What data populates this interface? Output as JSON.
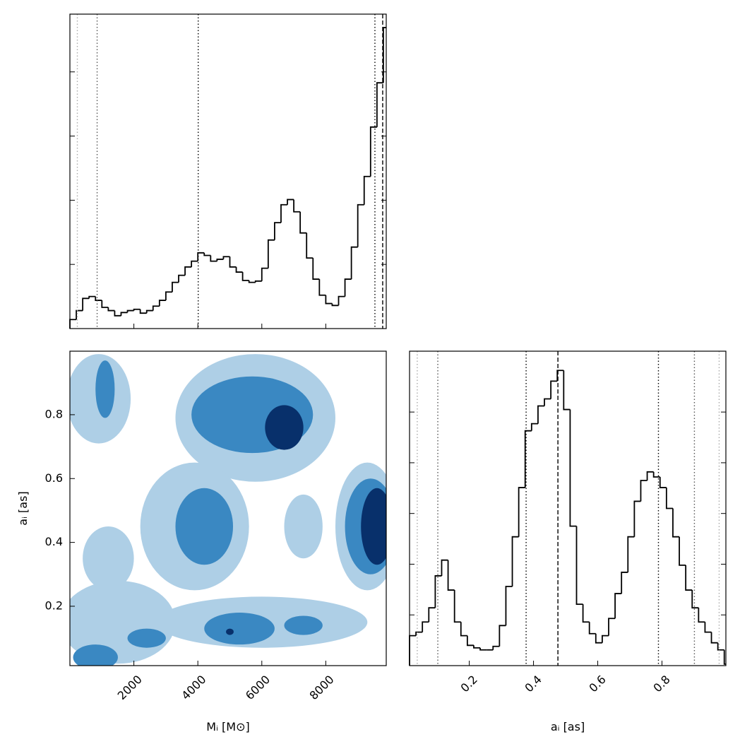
{
  "chart_data": [
    {
      "type": "histogram",
      "bins": [
        0,
        200,
        400,
        600,
        800,
        1000,
        1200,
        1400,
        1600,
        1800,
        2000,
        2200,
        2400,
        2600,
        2800,
        3000,
        3200,
        3400,
        3600,
        3800,
        4000,
        4200,
        4400,
        4600,
        4800,
        5000,
        5200,
        5400,
        5600,
        5800,
        6000,
        6200,
        6400,
        6600,
        6800,
        7000,
        7200,
        7400,
        7600,
        7800,
        8000,
        8200,
        8400,
        8600,
        8800,
        9000,
        9200,
        9400,
        9600,
        9800,
        9890
      ],
      "values": [
        0.14,
        0.28,
        0.47,
        0.5,
        0.44,
        0.33,
        0.28,
        0.2,
        0.25,
        0.28,
        0.3,
        0.24,
        0.28,
        0.35,
        0.44,
        0.57,
        0.72,
        0.83,
        0.96,
        1.05,
        1.18,
        1.14,
        1.05,
        1.08,
        1.12,
        0.96,
        0.88,
        0.75,
        0.72,
        0.74,
        0.94,
        1.38,
        1.65,
        1.93,
        2.01,
        1.82,
        1.49,
        1.1,
        0.77,
        0.52,
        0.39,
        0.36,
        0.5,
        0.77,
        1.27,
        1.93,
        2.37,
        3.14,
        3.83,
        4.69
      ],
      "color": "#000000",
      "xlim": [
        0,
        9890
      ],
      "xticks": [
        2000,
        4000,
        6000,
        8000
      ],
      "xtick_labels": false,
      "ylim": [
        0,
        4.9
      ],
      "yticks": [
        1,
        2,
        3,
        4
      ],
      "quantiles": [
        {
          "value": 232,
          "color": "#aaaaaa",
          "dash": "dotted"
        },
        {
          "value": 851,
          "color": "#555555",
          "dash": "dotted"
        },
        {
          "value": 4011,
          "color": "#000000",
          "dash": "dotted"
        },
        {
          "value": 9536,
          "color": "#000000",
          "dash": "dotted"
        },
        {
          "value": 9779,
          "color": "#000000",
          "dash": "dashed"
        }
      ]
    },
    {
      "type": "contour",
      "x_label": "Mᵢ [M⊙]",
      "y_label": "aᵢ [as]",
      "xlim": [
        0,
        9890
      ],
      "xticks": [
        2000,
        4000,
        6000,
        8000
      ],
      "ylim": [
        0.014,
        0.999
      ],
      "yticks": [
        0.2,
        0.4,
        0.6,
        0.8
      ],
      "level_colors": [
        "#aecfe6",
        "#3a88c2",
        "#08306b"
      ],
      "regions": [
        {
          "level": 0,
          "x": 5800,
          "y": 0.79,
          "rx": 2500,
          "ry": 0.2
        },
        {
          "level": 0,
          "x": 900,
          "y": 0.85,
          "rx": 1000,
          "ry": 0.14
        },
        {
          "level": 0,
          "x": 3900,
          "y": 0.45,
          "rx": 1700,
          "ry": 0.2
        },
        {
          "level": 0,
          "x": 9300,
          "y": 0.45,
          "rx": 1000,
          "ry": 0.2
        },
        {
          "level": 0,
          "x": 6000,
          "y": 0.15,
          "rx": 3300,
          "ry": 0.08
        },
        {
          "level": 0,
          "x": 1500,
          "y": 0.15,
          "rx": 1800,
          "ry": 0.13
        },
        {
          "level": 0,
          "x": 1200,
          "y": 0.35,
          "rx": 800,
          "ry": 0.1
        },
        {
          "level": 0,
          "x": 7300,
          "y": 0.45,
          "rx": 600,
          "ry": 0.1
        },
        {
          "level": 1,
          "x": 5700,
          "y": 0.8,
          "rx": 1900,
          "ry": 0.12
        },
        {
          "level": 1,
          "x": 4200,
          "y": 0.45,
          "rx": 900,
          "ry": 0.12
        },
        {
          "level": 1,
          "x": 9400,
          "y": 0.45,
          "rx": 800,
          "ry": 0.15
        },
        {
          "level": 1,
          "x": 5300,
          "y": 0.13,
          "rx": 1100,
          "ry": 0.05
        },
        {
          "level": 1,
          "x": 2400,
          "y": 0.1,
          "rx": 600,
          "ry": 0.03
        },
        {
          "level": 1,
          "x": 7300,
          "y": 0.14,
          "rx": 600,
          "ry": 0.03
        },
        {
          "level": 1,
          "x": 800,
          "y": 0.04,
          "rx": 700,
          "ry": 0.04
        },
        {
          "level": 1,
          "x": 1100,
          "y": 0.88,
          "rx": 300,
          "ry": 0.09
        },
        {
          "level": 2,
          "x": 6700,
          "y": 0.76,
          "rx": 600,
          "ry": 0.07
        },
        {
          "level": 2,
          "x": 9600,
          "y": 0.45,
          "rx": 500,
          "ry": 0.12
        },
        {
          "level": 2,
          "x": 5000,
          "y": 0.12,
          "rx": 120,
          "ry": 0.01
        }
      ]
    },
    {
      "type": "histogram",
      "x_label": "aᵢ [as]",
      "bins": [
        0.014,
        0.034,
        0.054,
        0.074,
        0.094,
        0.114,
        0.134,
        0.154,
        0.174,
        0.194,
        0.214,
        0.234,
        0.254,
        0.274,
        0.294,
        0.314,
        0.334,
        0.354,
        0.374,
        0.394,
        0.414,
        0.434,
        0.454,
        0.474,
        0.494,
        0.514,
        0.534,
        0.554,
        0.574,
        0.594,
        0.614,
        0.634,
        0.654,
        0.674,
        0.694,
        0.714,
        0.734,
        0.754,
        0.774,
        0.794,
        0.814,
        0.834,
        0.854,
        0.874,
        0.894,
        0.914,
        0.934,
        0.954,
        0.974,
        0.994,
        0.999
      ],
      "values": [
        0.59,
        0.66,
        0.86,
        1.14,
        1.77,
        2.08,
        1.49,
        0.86,
        0.59,
        0.4,
        0.35,
        0.31,
        0.31,
        0.38,
        0.79,
        1.56,
        2.54,
        3.51,
        4.63,
        4.77,
        5.12,
        5.26,
        5.61,
        5.82,
        5.05,
        2.75,
        1.21,
        0.86,
        0.63,
        0.45,
        0.59,
        0.93,
        1.42,
        1.84,
        2.54,
        3.24,
        3.65,
        3.82,
        3.72,
        3.51,
        3.1,
        2.54,
        1.98,
        1.49,
        1.14,
        0.86,
        0.66,
        0.45,
        0.31,
        0.03
      ],
      "color": "#000000",
      "xlim": [
        0.014,
        0.999
      ],
      "xticks": [
        0.2,
        0.4,
        0.6,
        0.8
      ],
      "ylim": [
        0,
        6.2
      ],
      "yticks": [
        1,
        2,
        3,
        4,
        5
      ],
      "quantiles": [
        {
          "value": 0.038,
          "color": "#aaaaaa",
          "dash": "dotted"
        },
        {
          "value": 0.102,
          "color": "#555555",
          "dash": "dotted"
        },
        {
          "value": 0.377,
          "color": "#000000",
          "dash": "dotted"
        },
        {
          "value": 0.476,
          "color": "#000000",
          "dash": "dashed"
        },
        {
          "value": 0.789,
          "color": "#000000",
          "dash": "dotted"
        },
        {
          "value": 0.901,
          "color": "#555555",
          "dash": "dotted"
        },
        {
          "value": 0.978,
          "color": "#aaaaaa",
          "dash": "dotted"
        }
      ]
    }
  ]
}
